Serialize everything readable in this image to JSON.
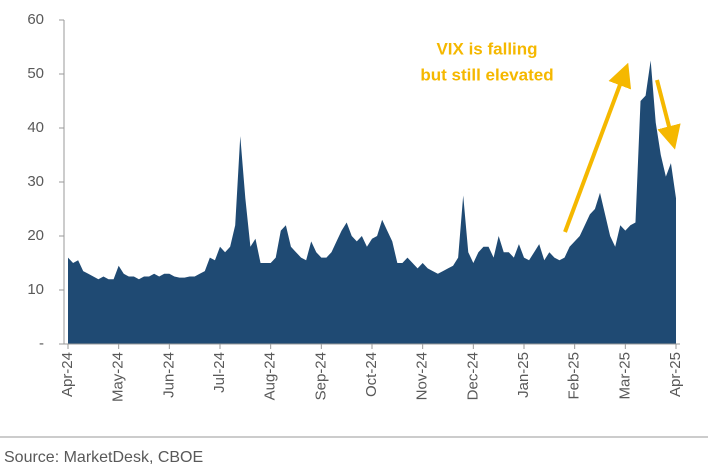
{
  "chart_data": {
    "type": "area",
    "annotation": [
      "VIX is falling",
      "but still elevated"
    ],
    "source": "Source: MarketDesk, CBOE",
    "color": "#1f4a73",
    "annotation_color": "#f5b800",
    "categories": [
      "Apr-24",
      null,
      null,
      null,
      null,
      null,
      null,
      null,
      null,
      null,
      "May-24",
      null,
      null,
      null,
      null,
      null,
      null,
      null,
      null,
      null,
      "Jun-24",
      null,
      null,
      null,
      null,
      null,
      null,
      null,
      null,
      null,
      "Jul-24",
      null,
      null,
      null,
      null,
      null,
      null,
      null,
      null,
      null,
      "Aug-24",
      null,
      null,
      null,
      null,
      null,
      null,
      null,
      null,
      null,
      "Sep-24",
      null,
      null,
      null,
      null,
      null,
      null,
      null,
      null,
      null,
      "Oct-24",
      null,
      null,
      null,
      null,
      null,
      null,
      null,
      null,
      null,
      "Nov-24",
      null,
      null,
      null,
      null,
      null,
      null,
      null,
      null,
      null,
      "Dec-24",
      null,
      null,
      null,
      null,
      null,
      null,
      null,
      null,
      null,
      "Jan-25",
      null,
      null,
      null,
      null,
      null,
      null,
      null,
      null,
      null,
      "Feb-25",
      null,
      null,
      null,
      null,
      null,
      null,
      null,
      null,
      null,
      "Mar-25",
      null,
      null,
      null,
      null,
      null,
      null,
      null,
      null,
      null,
      "Apr-25"
    ],
    "values": [
      16,
      15,
      15.5,
      13.5,
      13,
      12.5,
      12,
      12.5,
      12,
      12,
      14.5,
      13,
      12.5,
      12.5,
      12,
      12.5,
      12.5,
      13,
      12.5,
      13,
      13,
      12.5,
      12.3,
      12.3,
      12.5,
      12.5,
      13,
      13.5,
      16,
      15.5,
      18,
      17,
      18,
      22,
      38.5,
      27,
      18,
      19.5,
      15,
      15,
      15,
      16,
      21,
      22,
      18,
      17,
      16,
      15.5,
      19,
      17,
      16,
      16,
      17,
      19,
      21,
      22.5,
      20,
      19,
      20,
      18,
      19.5,
      20,
      23,
      21,
      19,
      15,
      15,
      16,
      15,
      14,
      15,
      14,
      13.5,
      13,
      13.5,
      14,
      14.5,
      16,
      27.5,
      17,
      15,
      17,
      18,
      18,
      16,
      20,
      17,
      17,
      16,
      18.5,
      16,
      15.5,
      17,
      18.5,
      15.5,
      17,
      16,
      15.5,
      16,
      18,
      19,
      20,
      22,
      24,
      25,
      28,
      24,
      20,
      18,
      22,
      21,
      22,
      22.5,
      45,
      46,
      52.5,
      41,
      35,
      31,
      33.5,
      27
    ],
    "ylim": [
      0,
      60
    ],
    "yticks": [
      {
        "value": 0,
        "label": "-"
      },
      10,
      20,
      30,
      40,
      50,
      60
    ]
  }
}
